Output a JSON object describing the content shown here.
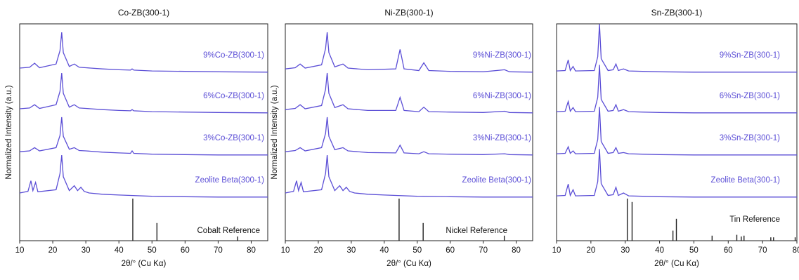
{
  "figure": {
    "series_color": "#5b4ed6",
    "reference_color": "#222222"
  },
  "chart_data": [
    {
      "type": "line",
      "title": "Co-ZB(300-1)",
      "xlabel": "2θ/° (Cu Kα)",
      "ylabel": "Normalized Intensity (a.u.)",
      "xlim": [
        10,
        85
      ],
      "xticks": [
        "10",
        "20",
        "30",
        "40",
        "50",
        "60",
        "70",
        "80"
      ],
      "grid": false,
      "series": [
        {
          "name": "9%Co-ZB(300-1)",
          "x": [
            10,
            13,
            14.5,
            16,
            21,
            22.2,
            22.7,
            23.2,
            25,
            26.5,
            28,
            30,
            35,
            40,
            43.5,
            44,
            44.5,
            50,
            60,
            70,
            85
          ],
          "y": [
            0.12,
            0.14,
            0.24,
            0.13,
            0.22,
            0.55,
            1.0,
            0.5,
            0.16,
            0.22,
            0.14,
            0.13,
            0.1,
            0.08,
            0.07,
            0.1,
            0.07,
            0.05,
            0.04,
            0.03,
            0.02
          ]
        },
        {
          "name": "6%Co-ZB(300-1)",
          "x": [
            10,
            13,
            14.5,
            16,
            21,
            22.2,
            22.7,
            23.2,
            25,
            26.5,
            28,
            30,
            35,
            40,
            43.5,
            44,
            44.5,
            50,
            60,
            70,
            85
          ],
          "y": [
            0.12,
            0.14,
            0.22,
            0.13,
            0.22,
            0.55,
            1.0,
            0.5,
            0.16,
            0.22,
            0.14,
            0.13,
            0.1,
            0.08,
            0.07,
            0.1,
            0.07,
            0.05,
            0.04,
            0.03,
            0.02
          ]
        },
        {
          "name": "3%Co-ZB(300-1)",
          "x": [
            10,
            13,
            14.5,
            16,
            21,
            22.2,
            22.7,
            23.2,
            25,
            26.5,
            28,
            30,
            35,
            40,
            43.5,
            44,
            44.5,
            50,
            60,
            70,
            85
          ],
          "y": [
            0.1,
            0.12,
            0.2,
            0.12,
            0.2,
            0.5,
            0.95,
            0.48,
            0.16,
            0.2,
            0.13,
            0.12,
            0.09,
            0.07,
            0.06,
            0.12,
            0.06,
            0.04,
            0.03,
            0.02,
            0.02
          ]
        },
        {
          "name": "Zeolite Beta(300-1)",
          "x": [
            10,
            12.5,
            13.4,
            14,
            14.8,
            15.5,
            21,
            22.2,
            22.7,
            23.2,
            25,
            26.5,
            27.5,
            28.5,
            29.5,
            31,
            35,
            40,
            43.5,
            50,
            60,
            70,
            85
          ],
          "y": [
            0.12,
            0.16,
            0.42,
            0.18,
            0.38,
            0.15,
            0.2,
            0.6,
            1.05,
            0.52,
            0.18,
            0.3,
            0.18,
            0.26,
            0.16,
            0.12,
            0.09,
            0.07,
            0.06,
            0.04,
            0.03,
            0.02,
            0.02
          ]
        }
      ],
      "reference": {
        "name": "Cobalt Reference",
        "peaks": [
          [
            44.2,
            1.0
          ],
          [
            51.5,
            0.42
          ],
          [
            75.9,
            0.1
          ]
        ]
      }
    },
    {
      "type": "line",
      "title": "Ni-ZB(300-1)",
      "xlabel": "2θ/° (Cu Kα)",
      "ylabel": "Normalized Intensity (a.u.)",
      "xlim": [
        10,
        85
      ],
      "xticks": [
        "10",
        "20",
        "30",
        "40",
        "50",
        "60",
        "70",
        "80"
      ],
      "grid": false,
      "series": [
        {
          "name": "9%Ni-ZB(300-1)",
          "x": [
            10,
            13,
            14.5,
            16,
            21,
            22.2,
            22.7,
            23.2,
            25,
            27.5,
            29,
            35,
            43.5,
            44.8,
            46,
            50.5,
            52,
            53.5,
            60,
            70,
            76.5,
            78,
            85
          ],
          "y": [
            0.1,
            0.13,
            0.22,
            0.12,
            0.2,
            0.6,
            1.0,
            0.5,
            0.15,
            0.22,
            0.12,
            0.08,
            0.1,
            0.58,
            0.1,
            0.06,
            0.25,
            0.06,
            0.04,
            0.03,
            0.08,
            0.03,
            0.02
          ]
        },
        {
          "name": "6%Ni-ZB(300-1)",
          "x": [
            10,
            13,
            14.5,
            16,
            21,
            22.2,
            22.7,
            23.2,
            25,
            27.5,
            29,
            35,
            43.5,
            44.8,
            46,
            50.5,
            52,
            53.5,
            60,
            70,
            76.5,
            78,
            85
          ],
          "y": [
            0.1,
            0.13,
            0.22,
            0.12,
            0.2,
            0.6,
            1.0,
            0.5,
            0.15,
            0.22,
            0.12,
            0.08,
            0.08,
            0.4,
            0.08,
            0.05,
            0.16,
            0.05,
            0.04,
            0.03,
            0.06,
            0.03,
            0.02
          ]
        },
        {
          "name": "3%Ni-ZB(300-1)",
          "x": [
            10,
            13,
            14.5,
            16,
            21,
            22.2,
            22.7,
            23.2,
            25,
            27.5,
            29,
            35,
            43.5,
            44.8,
            46,
            50.5,
            52,
            53.5,
            60,
            70,
            76.5,
            78,
            85
          ],
          "y": [
            0.1,
            0.13,
            0.2,
            0.12,
            0.2,
            0.55,
            0.95,
            0.48,
            0.15,
            0.2,
            0.12,
            0.08,
            0.07,
            0.26,
            0.07,
            0.05,
            0.1,
            0.05,
            0.04,
            0.03,
            0.05,
            0.03,
            0.02
          ]
        },
        {
          "name": "Zeolite Beta(300-1)",
          "x": [
            10,
            12.5,
            13.4,
            14,
            14.8,
            15.5,
            21,
            22.2,
            22.7,
            23.2,
            25,
            26.5,
            27.5,
            28.5,
            29.5,
            31,
            35,
            40,
            43.5,
            50,
            60,
            70,
            85
          ],
          "y": [
            0.12,
            0.16,
            0.42,
            0.18,
            0.38,
            0.15,
            0.2,
            0.6,
            1.05,
            0.52,
            0.18,
            0.3,
            0.18,
            0.26,
            0.16,
            0.12,
            0.09,
            0.07,
            0.06,
            0.04,
            0.03,
            0.02,
            0.02
          ]
        }
      ],
      "reference": {
        "name": "Nickel Reference",
        "peaks": [
          [
            44.5,
            1.0
          ],
          [
            51.8,
            0.42
          ],
          [
            76.4,
            0.12
          ]
        ]
      }
    },
    {
      "type": "line",
      "title": "Sn-ZB(300-1)",
      "xlabel": "2θ/° (Cu Kα)",
      "ylabel": "",
      "xlim": [
        10,
        80
      ],
      "xticks": [
        "10",
        "20",
        "30",
        "40",
        "50",
        "60",
        "70",
        "80"
      ],
      "grid": false,
      "series": [
        {
          "name": "9%Sn-ZB(300-1)",
          "x": [
            10,
            12.5,
            13.4,
            14,
            14.8,
            15.5,
            21,
            22,
            22.5,
            23,
            25,
            26.5,
            27.3,
            28,
            29.5,
            31,
            35,
            40,
            50,
            60,
            70,
            80
          ],
          "y": [
            0.05,
            0.06,
            0.32,
            0.06,
            0.16,
            0.05,
            0.06,
            0.4,
            1.2,
            0.35,
            0.06,
            0.08,
            0.22,
            0.06,
            0.1,
            0.05,
            0.04,
            0.03,
            0.02,
            0.02,
            0.02,
            0.02
          ]
        },
        {
          "name": "6%Sn-ZB(300-1)",
          "x": [
            10,
            12.5,
            13.4,
            14,
            14.8,
            15.5,
            21,
            22,
            22.5,
            23,
            25,
            26.5,
            27.3,
            28,
            29.5,
            31,
            35,
            40,
            50,
            60,
            70,
            80
          ],
          "y": [
            0.05,
            0.06,
            0.3,
            0.06,
            0.15,
            0.05,
            0.06,
            0.4,
            1.2,
            0.35,
            0.06,
            0.08,
            0.22,
            0.06,
            0.1,
            0.05,
            0.04,
            0.03,
            0.02,
            0.02,
            0.02,
            0.02
          ]
        },
        {
          "name": "3%Sn-ZB(300-1)",
          "x": [
            10,
            12.5,
            13.4,
            14,
            14.8,
            15.5,
            21,
            22,
            22.5,
            23,
            25,
            26.5,
            27.3,
            28,
            29.5,
            31,
            35,
            40,
            50,
            60,
            70,
            80
          ],
          "y": [
            0.05,
            0.06,
            0.22,
            0.06,
            0.12,
            0.05,
            0.06,
            0.4,
            1.2,
            0.35,
            0.06,
            0.08,
            0.2,
            0.06,
            0.08,
            0.05,
            0.04,
            0.03,
            0.02,
            0.02,
            0.02,
            0.02
          ]
        },
        {
          "name": "Zeolite Beta(300-1)",
          "x": [
            10,
            12.5,
            13.4,
            14,
            14.8,
            15.5,
            21,
            22,
            22.5,
            23,
            25,
            26.5,
            27.3,
            28,
            29.5,
            31,
            35,
            40,
            50,
            60,
            70,
            80
          ],
          "y": [
            0.05,
            0.06,
            0.34,
            0.06,
            0.2,
            0.05,
            0.06,
            0.4,
            1.2,
            0.35,
            0.06,
            0.08,
            0.26,
            0.06,
            0.12,
            0.05,
            0.04,
            0.03,
            0.02,
            0.02,
            0.02,
            0.02
          ]
        }
      ],
      "reference": {
        "name": "Tin Reference",
        "peaks": [
          [
            30.6,
            1.0
          ],
          [
            32.0,
            0.92
          ],
          [
            43.9,
            0.24
          ],
          [
            44.9,
            0.52
          ],
          [
            55.3,
            0.12
          ],
          [
            62.5,
            0.14
          ],
          [
            63.8,
            0.1
          ],
          [
            64.6,
            0.12
          ],
          [
            72.4,
            0.08
          ],
          [
            73.2,
            0.08
          ],
          [
            79.5,
            0.08
          ]
        ]
      }
    }
  ]
}
